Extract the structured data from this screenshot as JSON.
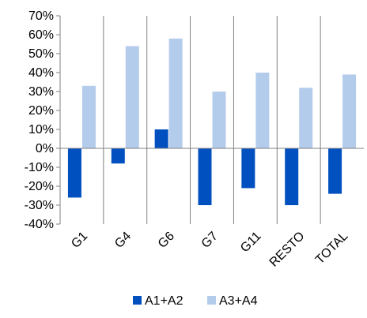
{
  "chart_data": {
    "type": "bar",
    "categories": [
      "G1",
      "G4",
      "G6",
      "G7",
      "G11",
      "RESTO",
      "TOTAL"
    ],
    "series": [
      {
        "name": "A1+A2",
        "color": "#0050C0",
        "values": [
          -26,
          -8,
          10,
          -30,
          -21,
          -30,
          -24
        ]
      },
      {
        "name": "A3+A4",
        "color": "#B4CCEC",
        "values": [
          33,
          54,
          58,
          30,
          40,
          32,
          39
        ]
      }
    ],
    "ylim": [
      -40,
      70
    ],
    "yticks": [
      -40,
      -30,
      -20,
      -10,
      0,
      10,
      20,
      30,
      40,
      50,
      60,
      70
    ],
    "ytick_labels": [
      "-40%",
      "-30%",
      "-20%",
      "-10%",
      "0%",
      "10%",
      "20%",
      "30%",
      "40%",
      "50%",
      "60%",
      "70%"
    ],
    "legend_position": "bottom",
    "grid": false
  }
}
